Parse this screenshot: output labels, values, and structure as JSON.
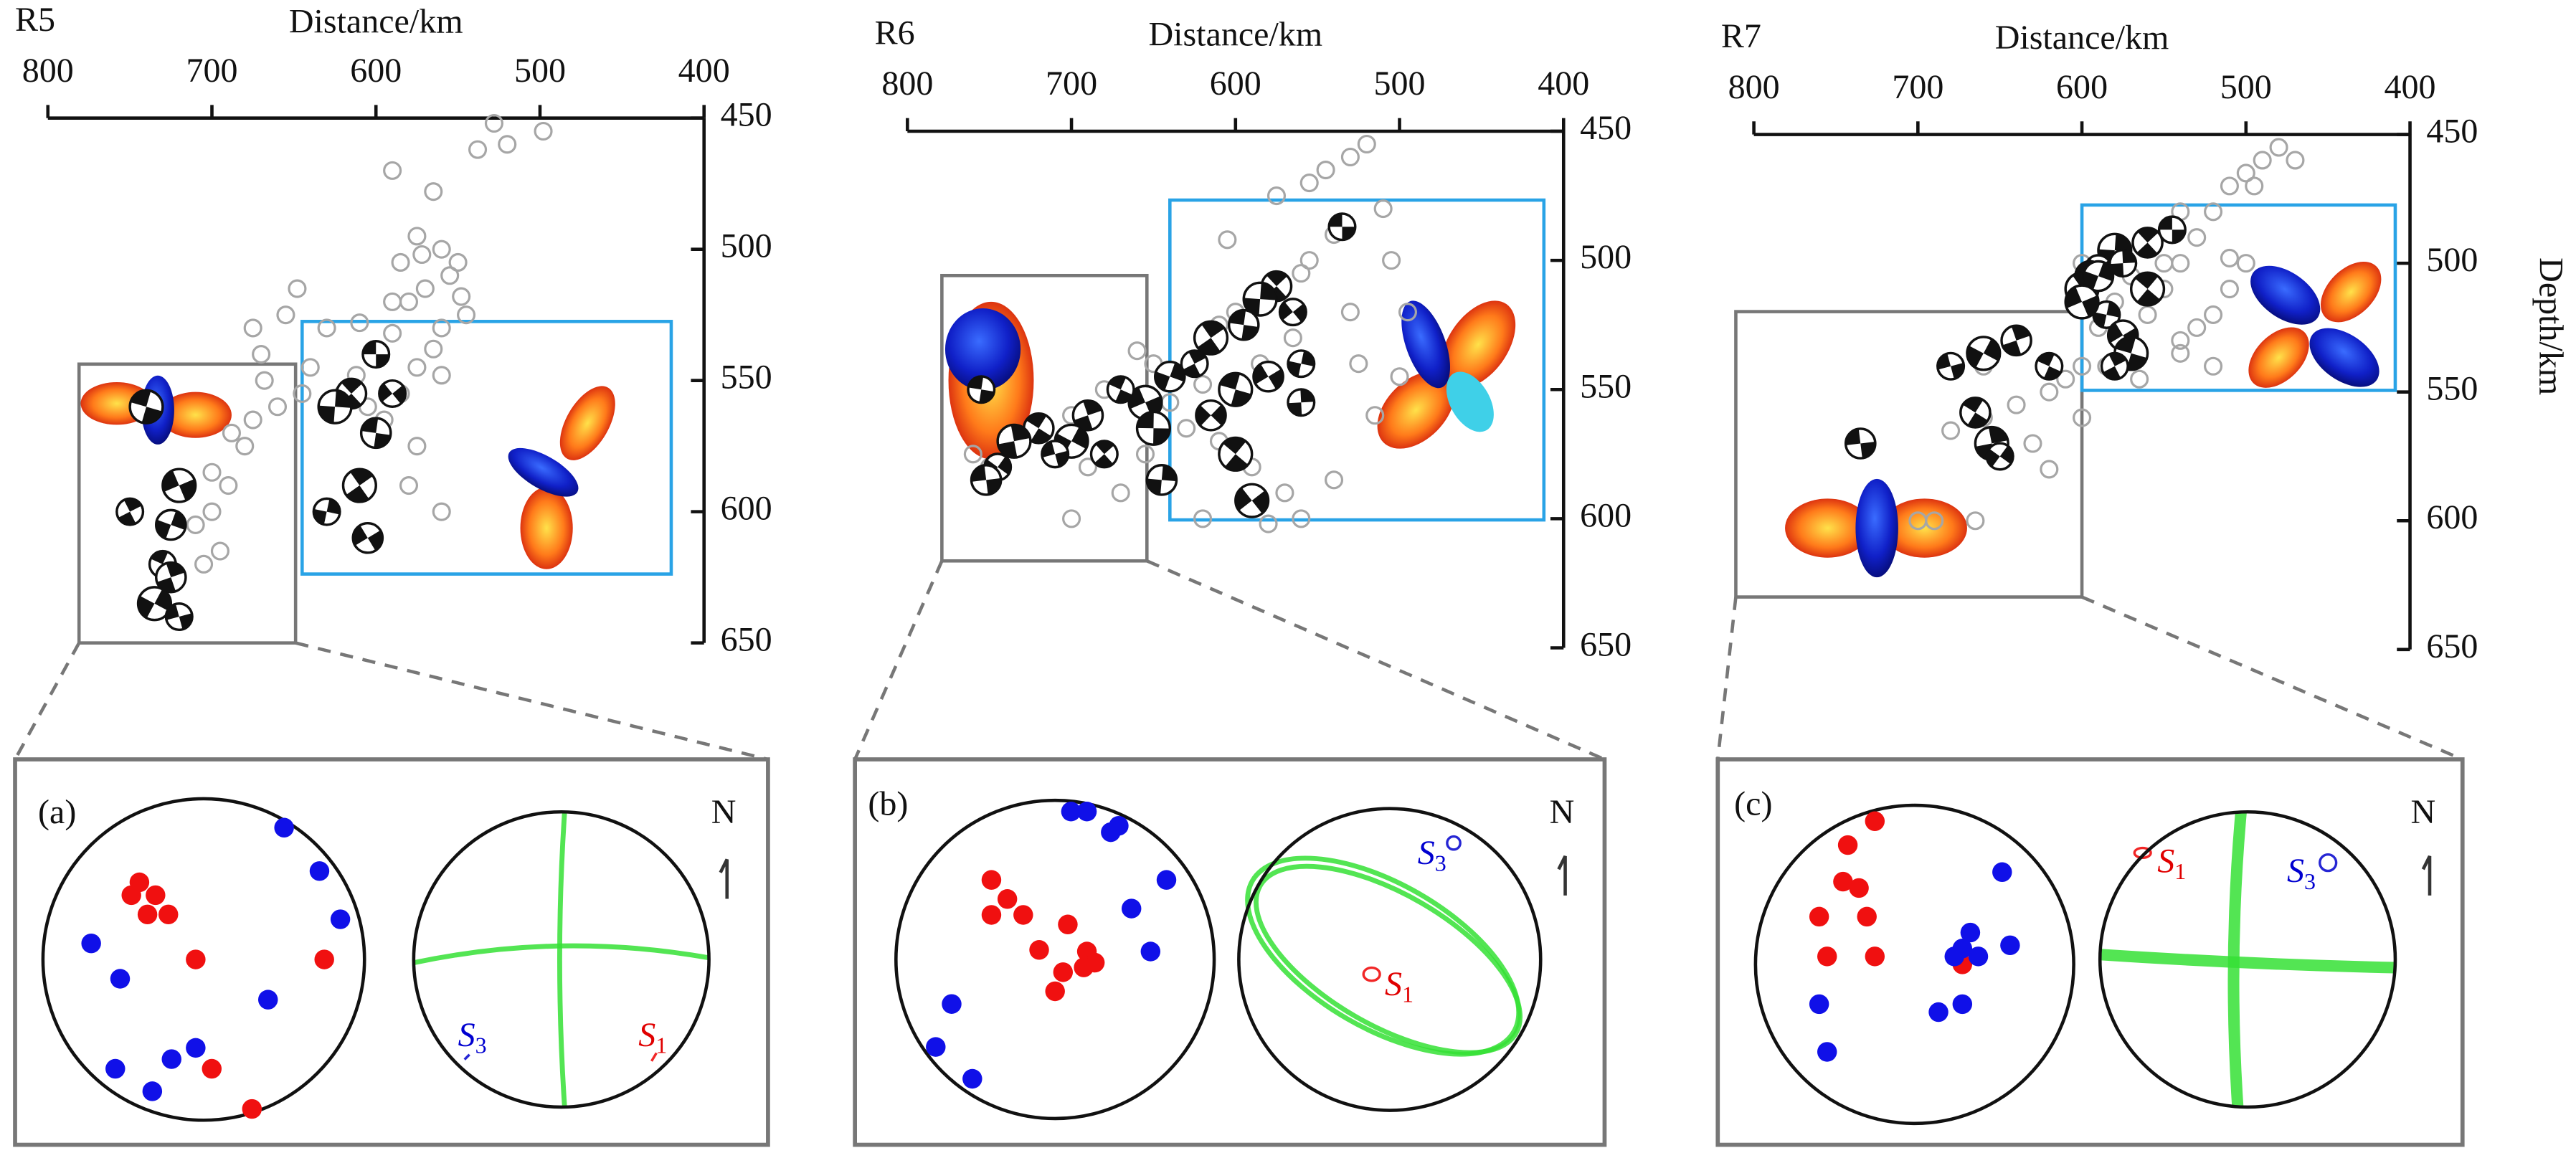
{
  "chart_data": [
    {
      "type": "scatter",
      "panel": "R5",
      "title": "Distance/km",
      "xlim": [
        800,
        400
      ],
      "xticks": [
        800,
        700,
        600,
        500,
        400
      ],
      "ylim": [
        650,
        450
      ],
      "yticks": [
        450,
        500,
        550,
        600,
        650
      ],
      "event_color": "#a6a6a6",
      "events": {
        "x": [
          528,
          498,
          538,
          565,
          575,
          560,
          555,
          570,
          580,
          545,
          560,
          590,
          600,
          575,
          560,
          585,
          605,
          620,
          640,
          670,
          675,
          668,
          660,
          675,
          680,
          690,
          700,
          710,
          695,
          590,
          550,
          585,
          610,
          595,
          575,
          580,
          560,
          630,
          645,
          700,
          705,
          655,
          648,
          520,
          590,
          565,
          572,
          548,
          612,
          688
        ],
        "y": [
          452,
          455,
          462,
          478,
          495,
          500,
          510,
          515,
          520,
          525,
          530,
          532,
          540,
          545,
          548,
          555,
          560,
          555,
          545,
          540,
          530,
          550,
          560,
          565,
          575,
          590,
          600,
          605,
          615,
          520,
          505,
          505,
          528,
          565,
          575,
          590,
          600,
          530,
          555,
          585,
          620,
          525,
          515,
          460,
          470,
          538,
          502,
          518,
          548,
          570
        ]
      },
      "mechanisms": {
        "x": [
          600,
          615,
          625,
          590,
          600,
          610,
          630,
          605,
          740,
          750,
          725,
          720,
          730,
          725,
          735,
          720
        ],
        "y": [
          540,
          555,
          560,
          555,
          570,
          590,
          600,
          610,
          560,
          600,
          605,
          590,
          620,
          625,
          635,
          640
        ]
      }
    },
    {
      "type": "scatter",
      "panel": "R6",
      "title": "Distance/km",
      "xlim": [
        800,
        400
      ],
      "xticks": [
        800,
        700,
        600,
        500,
        400
      ],
      "ylim": [
        650,
        450
      ],
      "yticks": [
        450,
        500,
        550,
        600,
        650
      ],
      "event_color": "#a6a6a6",
      "events": {
        "x": [
          530,
          520,
          545,
          510,
          540,
          555,
          560,
          575,
          590,
          600,
          610,
          620,
          505,
          495,
          525,
          565,
          585,
          600,
          620,
          640,
          650,
          660,
          680,
          700,
          720,
          740,
          690,
          670,
          655,
          630,
          610,
          590,
          570,
          540,
          515,
          500,
          560,
          580,
          620,
          700,
          750,
          760,
          640,
          605,
          575,
          555,
          530
        ],
        "y": [
          460,
          455,
          465,
          480,
          490,
          500,
          505,
          510,
          515,
          520,
          525,
          530,
          500,
          520,
          540,
          530,
          540,
          550,
          548,
          545,
          540,
          535,
          550,
          560,
          565,
          570,
          580,
          590,
          575,
          565,
          570,
          580,
          590,
          585,
          560,
          545,
          600,
          602,
          600,
          600,
          580,
          575,
          555,
          492,
          475,
          470,
          520
        ]
      },
      "mechanisms": {
        "x": [
          535,
          575,
          585,
          565,
          595,
          615,
          560,
          580,
          600,
          625,
          640,
          655,
          670,
          690,
          700,
          710,
          720,
          735,
          745,
          752,
          600,
          560,
          615,
          650,
          680,
          645,
          590,
          755
        ],
        "y": [
          487,
          510,
          515,
          520,
          525,
          530,
          540,
          545,
          550,
          540,
          545,
          555,
          550,
          560,
          570,
          575,
          565,
          570,
          580,
          585,
          575,
          555,
          560,
          565,
          575,
          585,
          593,
          550
        ]
      }
    },
    {
      "type": "scatter",
      "panel": "R7",
      "title": "Distance/km",
      "y_label": "Depth/km",
      "xlim": [
        800,
        400
      ],
      "xticks": [
        800,
        700,
        600,
        500,
        400
      ],
      "ylim": [
        650,
        450
      ],
      "yticks": [
        450,
        500,
        550,
        600,
        650
      ],
      "event_color": "#a6a6a6",
      "events": {
        "x": [
          480,
          490,
          500,
          510,
          520,
          530,
          540,
          550,
          560,
          500,
          510,
          520,
          530,
          540,
          550,
          560,
          570,
          580,
          590,
          520,
          470,
          540,
          565,
          585,
          600,
          610,
          620,
          640,
          660,
          680,
          650,
          630,
          620,
          600,
          690,
          700,
          665,
          660,
          540,
          600,
          510,
          495
        ],
        "y": [
          455,
          460,
          465,
          470,
          480,
          490,
          500,
          510,
          520,
          500,
          510,
          520,
          525,
          530,
          500,
          490,
          505,
          515,
          525,
          540,
          460,
          535,
          545,
          540,
          540,
          545,
          550,
          555,
          560,
          565,
          575,
          570,
          580,
          560,
          600,
          600,
          600,
          540,
          480,
          500,
          498,
          470
        ]
      },
      "mechanisms": {
        "x": [
          545,
          560,
          580,
          590,
          595,
          600,
          585,
          575,
          570,
          580,
          590,
          600,
          620,
          640,
          660,
          680,
          665,
          655,
          650,
          735,
          560,
          575
        ],
        "y": [
          487,
          492,
          495,
          502,
          505,
          510,
          520,
          528,
          535,
          540,
          505,
          515,
          540,
          530,
          535,
          540,
          558,
          570,
          575,
          570,
          510,
          500
        ]
      }
    }
  ],
  "insets": [
    {
      "label": "(a)",
      "north": "N",
      "s1": [
        "S",
        "1"
      ],
      "s3": [
        "S",
        "3"
      ],
      "red": {
        "x": [
          -0.4,
          -0.45,
          -0.3,
          -0.35,
          -0.22,
          -0.05,
          0.75,
          0.05,
          0.3
        ],
        "y": [
          0.48,
          0.4,
          0.4,
          0.28,
          0.28,
          0.0,
          0.0,
          -0.68,
          -0.93
        ]
      },
      "blue": {
        "x": [
          0.5,
          0.72,
          0.85,
          -0.7,
          -0.52,
          0.4,
          -0.2,
          -0.05,
          -0.55,
          -0.32
        ],
        "y": [
          0.82,
          0.55,
          0.25,
          0.1,
          -0.12,
          -0.25,
          -0.62,
          -0.55,
          -0.68,
          -0.82
        ]
      }
    },
    {
      "label": "(b)",
      "north": "N",
      "s1": [
        "S",
        "1"
      ],
      "s3": [
        "S",
        "3"
      ],
      "red": {
        "x": [
          -0.4,
          -0.3,
          -0.4,
          -0.2,
          0.08,
          -0.1,
          0.2,
          0.05,
          0.25,
          0.18,
          0.0
        ],
        "y": [
          0.5,
          0.38,
          0.28,
          0.28,
          0.22,
          0.06,
          0.05,
          -0.08,
          -0.02,
          -0.05,
          -0.2
        ]
      },
      "blue": {
        "x": [
          0.1,
          0.2,
          0.35,
          0.4,
          0.7,
          0.48,
          0.6,
          -0.65,
          -0.75,
          -0.52
        ],
        "y": [
          0.93,
          0.93,
          0.8,
          0.84,
          0.5,
          0.32,
          0.05,
          -0.28,
          -0.55,
          -0.75
        ]
      }
    },
    {
      "label": "(c)",
      "north": "N",
      "s1": [
        "S",
        "1"
      ],
      "s3": [
        "S",
        "3"
      ],
      "red": {
        "x": [
          -0.42,
          -0.25,
          -0.45,
          -0.35,
          -0.6,
          -0.3,
          -0.55,
          -0.25,
          0.3
        ],
        "y": [
          0.75,
          0.9,
          0.52,
          0.48,
          0.3,
          0.3,
          0.05,
          0.05,
          0.0
        ]
      },
      "blue": {
        "x": [
          0.55,
          0.35,
          0.25,
          0.4,
          0.6,
          0.3,
          -0.6,
          0.3,
          0.15,
          -0.55
        ],
        "y": [
          0.58,
          0.2,
          0.05,
          0.05,
          0.12,
          0.1,
          -0.25,
          -0.25,
          -0.3,
          -0.55
        ]
      }
    }
  ]
}
